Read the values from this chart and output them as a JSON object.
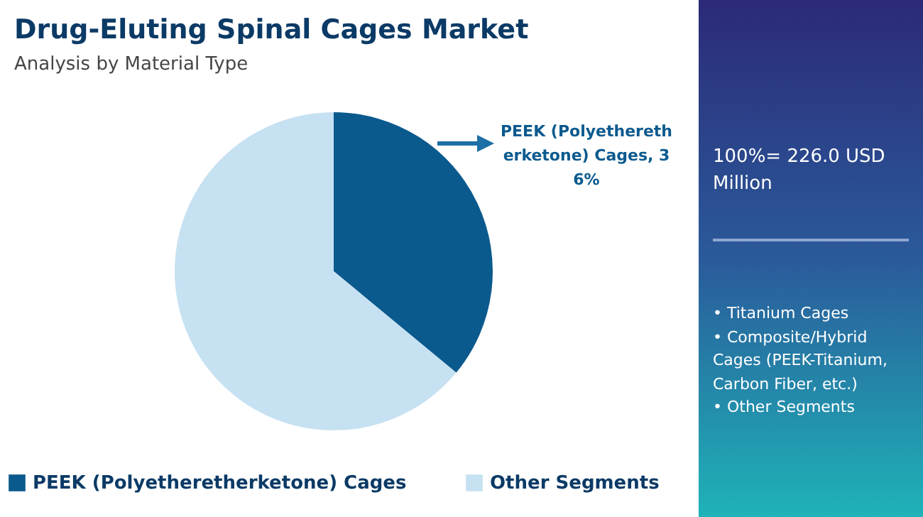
{
  "chart_data": {
    "type": "pie",
    "title": "Drug-Eluting Spinal Cages Market",
    "subtitle": "Analysis by Material Type",
    "categories": [
      "PEEK (Polyetheretherketone) Cages",
      "Other Segments"
    ],
    "values": [
      36,
      64
    ],
    "colors": [
      "#0b5a8e",
      "#c6e1f2"
    ],
    "value_labels": [
      "PEEK (Polyetheretherketone) Cages, 36%",
      null
    ],
    "legend": "bottom",
    "annotations": [
      "100%= 226.0 USD Million",
      "• Titanium Cages\n• Composite/Hybrid Cages (PEEK-Titanium, Carbon Fiber, etc.)\n• Other Segments"
    ]
  }
}
